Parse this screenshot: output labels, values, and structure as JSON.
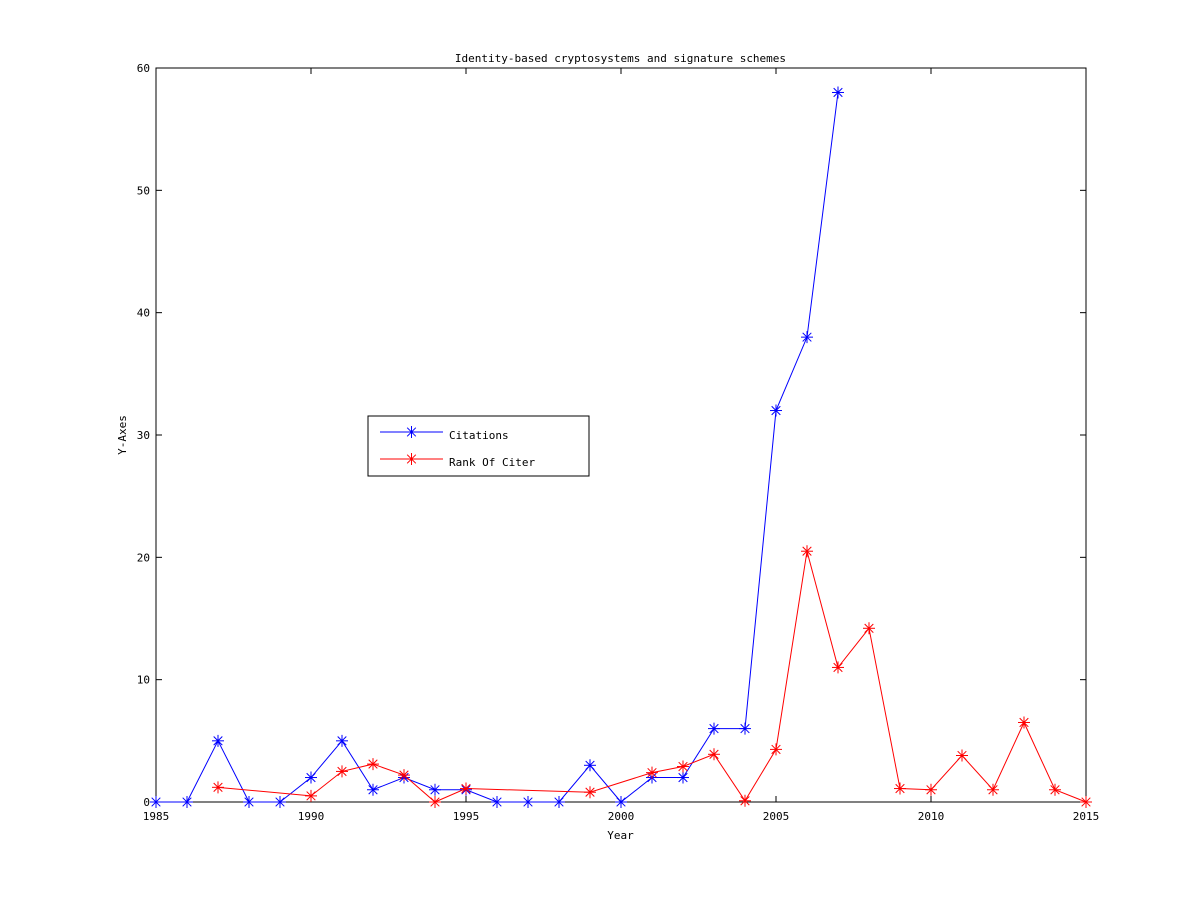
{
  "chart_data": {
    "type": "line",
    "title": "Identity-based cryptosystems and signature schemes",
    "xlabel": "Year",
    "ylabel": "Y-Axes",
    "xlim": [
      1985,
      2015
    ],
    "ylim": [
      0,
      60
    ],
    "xticks": [
      1985,
      1990,
      1995,
      2000,
      2005,
      2010,
      2015
    ],
    "yticks": [
      0,
      10,
      20,
      30,
      40,
      50,
      60
    ],
    "grid": false,
    "legend_position": "center-left",
    "marker": "asterisk",
    "series": [
      {
        "name": "Citations",
        "color": "#0000ff",
        "x": [
          1985,
          1986,
          1987,
          1988,
          1989,
          1990,
          1991,
          1992,
          1993,
          1994,
          1995,
          1996,
          1997,
          1998,
          1999,
          2000,
          2001,
          2002,
          2003,
          2004,
          2005,
          2006,
          2007
        ],
        "y": [
          0,
          0,
          5,
          0,
          0,
          2,
          5,
          1,
          2,
          1,
          1,
          0,
          0,
          0,
          3,
          0,
          2,
          2,
          6,
          6,
          32,
          38,
          58
        ]
      },
      {
        "name": "Rank Of Citer",
        "color": "#ff0000",
        "x": [
          1987,
          1990,
          1991,
          1992,
          1993,
          1994,
          1995,
          1999,
          2001,
          2002,
          2003,
          2004,
          2005,
          2006,
          2007,
          2008,
          2009,
          2010,
          2011,
          2012,
          2013,
          2014,
          2015
        ],
        "y": [
          1.2,
          0.5,
          2.5,
          3.1,
          2.2,
          0.0,
          1.1,
          0.8,
          2.4,
          2.9,
          3.9,
          0.1,
          4.3,
          20.5,
          11.0,
          14.2,
          1.1,
          1.0,
          3.8,
          1.0,
          6.5,
          1.0,
          0.0
        ]
      }
    ]
  }
}
